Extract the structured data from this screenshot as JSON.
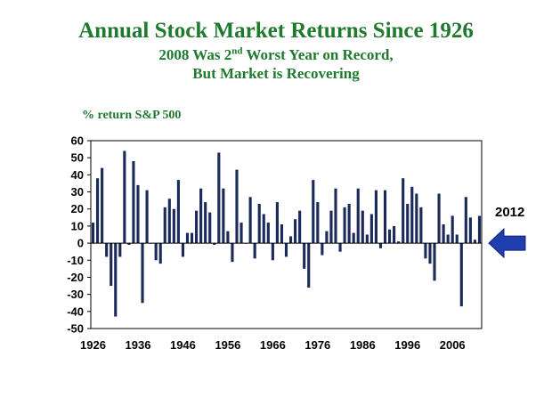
{
  "chart_data": {
    "type": "bar",
    "title": "Annual Stock Market Returns Since 1926",
    "subtitle_line1_pre": "2008 Was 2",
    "subtitle_line1_sup": "nd",
    "subtitle_line1_post": " Worst Year on Record,",
    "subtitle_line2": "But Market is Recovering",
    "ylabel": "% return S&P 500",
    "ylim": [
      -50,
      60
    ],
    "yticks": [
      -50,
      -40,
      -30,
      -20,
      -10,
      0,
      10,
      20,
      30,
      40,
      50,
      60
    ],
    "xticks": [
      1926,
      1936,
      1946,
      1956,
      1966,
      1976,
      1986,
      1996,
      2006
    ],
    "grid": false,
    "annotation": "2012",
    "arrow_color": "#1f3fae",
    "bar_color": "#1a2a5a",
    "years": [
      1926,
      1927,
      1928,
      1929,
      1930,
      1931,
      1932,
      1933,
      1934,
      1935,
      1936,
      1937,
      1938,
      1939,
      1940,
      1941,
      1942,
      1943,
      1944,
      1945,
      1946,
      1947,
      1948,
      1949,
      1950,
      1951,
      1952,
      1953,
      1954,
      1955,
      1956,
      1957,
      1958,
      1959,
      1960,
      1961,
      1962,
      1963,
      1964,
      1965,
      1966,
      1967,
      1968,
      1969,
      1970,
      1971,
      1972,
      1973,
      1974,
      1975,
      1976,
      1977,
      1978,
      1979,
      1980,
      1981,
      1982,
      1983,
      1984,
      1985,
      1986,
      1987,
      1988,
      1989,
      1990,
      1991,
      1992,
      1993,
      1994,
      1995,
      1996,
      1997,
      1998,
      1999,
      2000,
      2001,
      2002,
      2003,
      2004,
      2005,
      2006,
      2007,
      2008,
      2009,
      2010,
      2011,
      2012
    ],
    "values": [
      12,
      38,
      44,
      -8,
      -25,
      -43,
      -8,
      54,
      -1,
      48,
      34,
      -35,
      31,
      0,
      -10,
      -12,
      21,
      26,
      20,
      37,
      -8,
      6,
      6,
      19,
      32,
      24,
      18,
      -1,
      53,
      32,
      7,
      -11,
      43,
      12,
      0,
      27,
      -9,
      23,
      17,
      12,
      -10,
      24,
      11,
      -8,
      4,
      14,
      19,
      -15,
      -26,
      37,
      24,
      -7,
      7,
      19,
      32,
      -5,
      21,
      23,
      6,
      32,
      19,
      5,
      17,
      31,
      -3,
      31,
      8,
      10,
      1,
      38,
      23,
      33,
      29,
      21,
      -9,
      -12,
      -22,
      29,
      11,
      5,
      16,
      5,
      -37,
      27,
      15,
      2,
      16
    ]
  }
}
